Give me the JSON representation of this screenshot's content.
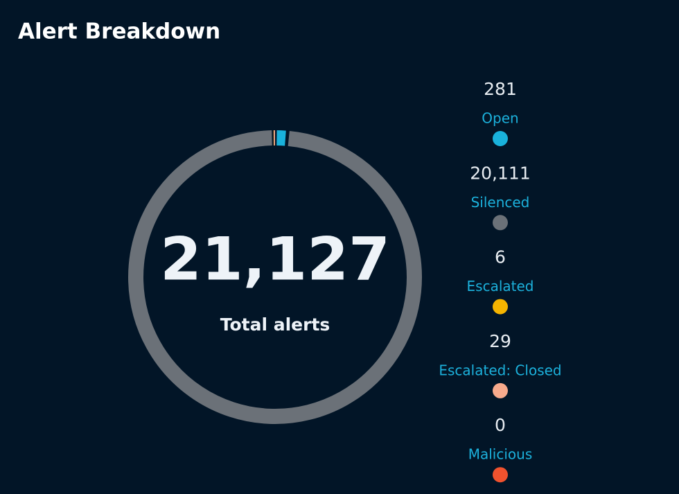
{
  "chart_data": {
    "type": "donut",
    "title": "Alert Breakdown",
    "center_value": {
      "value": 21127,
      "label": "21,127"
    },
    "center_label": "Total alerts",
    "categories": [
      "Open",
      "Silenced",
      "Escalated",
      "Escalated: Closed",
      "Malicious"
    ],
    "values": [
      281,
      20111,
      6,
      29,
      0
    ],
    "value_labels": [
      "281",
      "20,111",
      "6",
      "29",
      "0"
    ],
    "colors": [
      "#19b2dc",
      "#6b7178",
      "#f5b400",
      "#f7aa8c",
      "#f0522e"
    ]
  }
}
